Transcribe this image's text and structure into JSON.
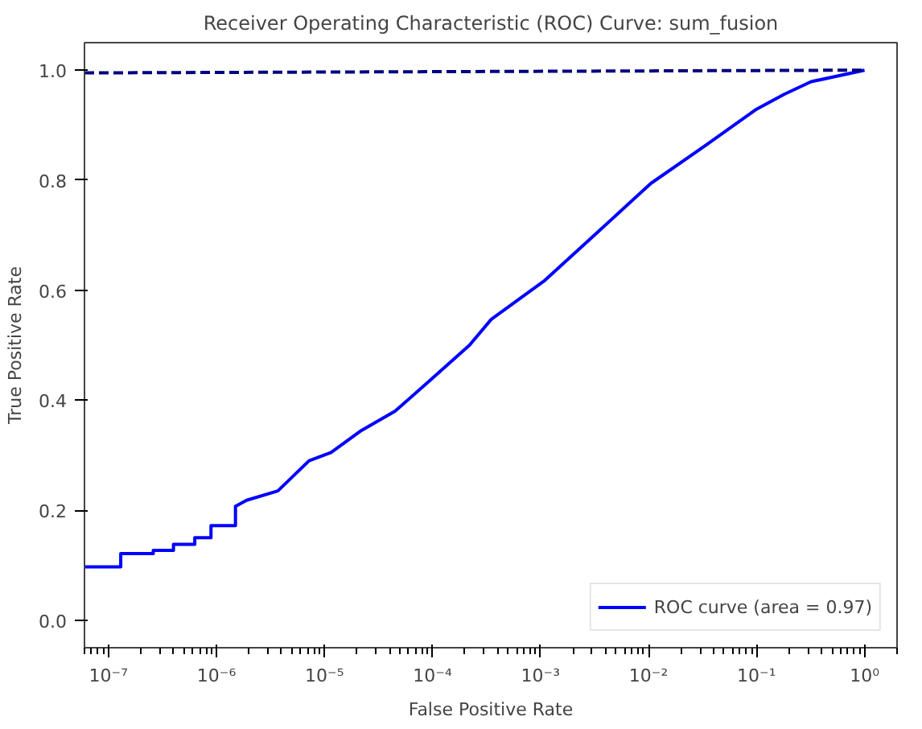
{
  "chart_data": {
    "type": "line",
    "title": "Receiver Operating Characteristic (ROC) Curve: sum_fusion",
    "xlabel": "False Positive Rate",
    "ylabel": "True Positive Rate",
    "log": "x",
    "xlim": [
      6e-08,
      2
    ],
    "ylim": [
      -0.05,
      1.05
    ],
    "xticks": [
      {
        "value": 1e-07,
        "label": "10⁻⁷"
      },
      {
        "value": 1e-06,
        "label": "10⁻⁶"
      },
      {
        "value": 1e-05,
        "label": "10⁻⁵"
      },
      {
        "value": 0.0001,
        "label": "10⁻⁴"
      },
      {
        "value": 0.001,
        "label": "10⁻³"
      },
      {
        "value": 0.01,
        "label": "10⁻²"
      },
      {
        "value": 0.1,
        "label": "10⁻¹"
      },
      {
        "value": 1,
        "label": "10⁰"
      }
    ],
    "yticks": [
      {
        "value": 0,
        "label": "0.0"
      },
      {
        "value": 0.2,
        "label": "0.2"
      },
      {
        "value": 0.4,
        "label": "0.4"
      },
      {
        "value": 0.6,
        "label": "0.6"
      },
      {
        "value": 0.8,
        "label": "0.8"
      },
      {
        "value": 1,
        "label": "1.0"
      }
    ],
    "grid": false,
    "legend": "bottom right",
    "series": [
      {
        "name": "ROC curve (area = 0.97)",
        "color": "#0000ff",
        "line_style": "solid",
        "x": [
          6e-08,
          1.3e-07,
          1.3e-07,
          2.6e-07,
          2.6e-07,
          4e-07,
          4e-07,
          6.3e-07,
          6.3e-07,
          8.9e-07,
          8.9e-07,
          1.5e-06,
          1.5e-06,
          1.9e-06,
          3.7e-06,
          7.2e-06,
          1.15e-05,
          2.2e-05,
          4.5e-05,
          0.0001,
          0.00022,
          0.00035,
          0.0011,
          0.0034,
          0.0105,
          0.033,
          0.1,
          0.18,
          0.32,
          1
        ],
        "values": [
          0.097,
          0.097,
          0.121,
          0.121,
          0.127,
          0.127,
          0.138,
          0.138,
          0.15,
          0.15,
          0.172,
          0.172,
          0.207,
          0.218,
          0.235,
          0.29,
          0.305,
          0.345,
          0.38,
          0.44,
          0.5,
          0.547,
          0.618,
          0.706,
          0.794,
          0.862,
          0.929,
          0.956,
          0.979,
          1.0
        ]
      },
      {
        "color": "#000080",
        "line_style": "dashed",
        "x": [
          6e-08,
          1
        ],
        "values": [
          0.995,
          1.0
        ]
      }
    ]
  }
}
